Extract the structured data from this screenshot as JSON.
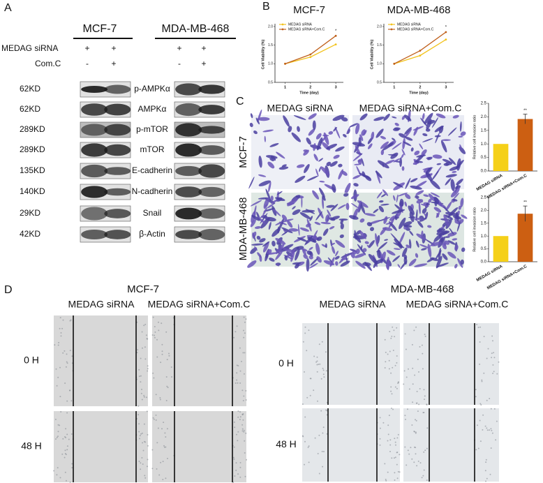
{
  "panel_labels": [
    "A",
    "B",
    "C",
    "D"
  ],
  "panel_a": {
    "cell_lines": [
      "MCF-7",
      "MDA-MB-468"
    ],
    "treatments": [
      {
        "label": "MEDAG siRNA",
        "marks": [
          "+",
          "+",
          "+",
          "+"
        ]
      },
      {
        "label": "Com.C",
        "marks": [
          "-",
          "+",
          "-",
          "+"
        ]
      }
    ],
    "blots": [
      {
        "size": "62KD",
        "protein": "p-AMPKα"
      },
      {
        "size": "62KD",
        "protein": "AMPKα"
      },
      {
        "size": "289KD",
        "protein": "p-mTOR"
      },
      {
        "size": "289KD",
        "protein": "mTOR"
      },
      {
        "size": "135KD",
        "protein": "E-cadherin"
      },
      {
        "size": "140KD",
        "protein": "N-cadherin"
      },
      {
        "size": "29KD",
        "protein": "Snail"
      },
      {
        "size": "42KD",
        "protein": "β-Actin"
      }
    ]
  },
  "chart_data": [
    {
      "type": "line",
      "title": "MCF-7",
      "x_label": "Time (day)",
      "y_label": "Cell Viability (%)",
      "x": [
        1,
        2,
        3
      ],
      "xlim": [
        0.6,
        3.3
      ],
      "xticks": [
        1,
        2,
        3
      ],
      "ylim": [
        0.5,
        2.0
      ],
      "yticks": [
        0.5,
        {
          "value": 1,
          "label": "1.0"
        },
        1.5,
        {
          "value": 2,
          "label": "2.0"
        }
      ],
      "annotation": "*",
      "series": [
        {
          "name": "MEDAG siRNA",
          "color": "#f2c21b",
          "values": [
            1.0,
            1.18,
            1.52
          ]
        },
        {
          "name": "MEDAG siRNA+Com.C",
          "color": "#c0601c",
          "values": [
            1.0,
            1.25,
            1.75
          ]
        }
      ]
    },
    {
      "type": "line",
      "title": "MDA-MB-468",
      "x_label": "Time (day)",
      "y_label": "Cell Viability (%)",
      "x": [
        1,
        2,
        3
      ],
      "xlim": [
        0.6,
        3.3
      ],
      "xticks": [
        1,
        2,
        3
      ],
      "ylim": [
        0.5,
        2.0
      ],
      "yticks": [
        0.5,
        {
          "value": 1,
          "label": "1.0"
        },
        1.5,
        {
          "value": 2,
          "label": "2.0"
        }
      ],
      "annotation": "*",
      "series": [
        {
          "name": "MEDAG siRNA",
          "color": "#f2c21b",
          "values": [
            1.0,
            1.22,
            1.65
          ]
        },
        {
          "name": "MEDAG siRNA+Com.C",
          "color": "#c0601c",
          "values": [
            1.0,
            1.35,
            1.85
          ]
        }
      ]
    },
    {
      "type": "bar",
      "y_label": "Relative cell invasion ratio",
      "categories": [
        "MEDAG siRNA",
        "MEDAG siRNA+Com.C"
      ],
      "values": [
        1.0,
        1.92
      ],
      "errors": [
        0,
        0.18
      ],
      "colors": [
        "#f5d018",
        "#cc5f12"
      ],
      "annotation": "**",
      "ylim": [
        0,
        2.5
      ],
      "yticks": [
        {
          "value": 0,
          "label": "0.0"
        },
        0.5,
        {
          "value": 1,
          "label": "1.0"
        },
        1.5,
        {
          "value": 2,
          "label": "2.0"
        },
        2.5
      ]
    },
    {
      "type": "bar",
      "y_label": "Relative cell invasion ratio",
      "categories": [
        "MEDAG siRNA",
        "MEDAG siRNA+Com.C"
      ],
      "values": [
        1.0,
        1.87
      ],
      "errors": [
        0,
        0.3
      ],
      "colors": [
        "#f5d018",
        "#cc5f12"
      ],
      "annotation": "**",
      "ylim": [
        0,
        2.5
      ],
      "yticks": [
        {
          "value": 0,
          "label": "0.0"
        },
        0.5,
        {
          "value": 1,
          "label": "1.0"
        },
        1.5,
        {
          "value": 2,
          "label": "2.0"
        },
        2.5
      ]
    }
  ],
  "panel_c": {
    "columns": [
      "MEDAG siRNA",
      "MEDAG siRNA+Com.C"
    ],
    "rows": [
      "MCF-7",
      "MDA-MB-468"
    ]
  },
  "panel_d": {
    "groups": [
      {
        "title": "MCF-7",
        "columns": [
          "MEDAG siRNA",
          "MEDAG siRNA+Com.C"
        ]
      },
      {
        "title": "MDA-MB-468",
        "columns": [
          "MEDAG siRNA",
          "MEDAG siRNA+Com.C"
        ]
      }
    ],
    "rows": [
      "0 H",
      "48 H"
    ]
  }
}
